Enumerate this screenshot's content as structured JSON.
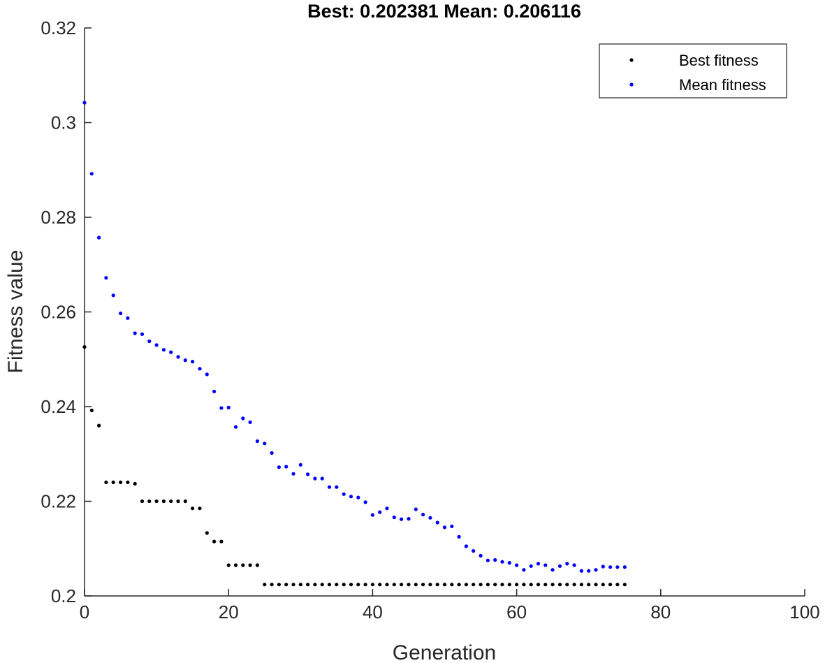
{
  "chart_data": {
    "type": "scatter",
    "title": "Best: 0.202381 Mean: 0.206116",
    "xlabel": "Generation",
    "ylabel": "Fitness value",
    "xlim": [
      0,
      100
    ],
    "ylim": [
      0.2,
      0.32
    ],
    "xticks": [
      "0",
      "20",
      "40",
      "60",
      "80",
      "100"
    ],
    "yticks": [
      "0.2",
      "0.22",
      "0.24",
      "0.26",
      "0.28",
      "0.3",
      "0.32"
    ],
    "grid": false,
    "legend_position": "top-right",
    "series": [
      {
        "name": "Best fitness",
        "color": "#000000",
        "x": [
          0,
          1,
          2,
          3,
          4,
          5,
          6,
          7,
          8,
          9,
          10,
          11,
          12,
          13,
          14,
          15,
          16,
          17,
          18,
          19,
          20,
          21,
          22,
          23,
          24,
          25,
          26,
          27,
          28,
          29,
          30,
          31,
          32,
          33,
          34,
          35,
          36,
          37,
          38,
          39,
          40,
          41,
          42,
          43,
          44,
          45,
          46,
          47,
          48,
          49,
          50,
          51,
          52,
          53,
          54,
          55,
          56,
          57,
          58,
          59,
          60,
          61,
          62,
          63,
          64,
          65,
          66,
          67,
          68,
          69,
          70,
          71,
          72,
          73,
          74,
          75
        ],
        "y": [
          0.2526,
          0.2392,
          0.236,
          0.224,
          0.224,
          0.224,
          0.224,
          0.2237,
          0.22,
          0.22,
          0.22,
          0.22,
          0.22,
          0.22,
          0.22,
          0.2185,
          0.2185,
          0.2133,
          0.2115,
          0.2115,
          0.2065,
          0.2065,
          0.2065,
          0.2065,
          0.2065,
          0.2024,
          0.2024,
          0.2024,
          0.2024,
          0.2024,
          0.2024,
          0.2024,
          0.2024,
          0.2024,
          0.2024,
          0.2024,
          0.2024,
          0.2024,
          0.2024,
          0.2024,
          0.2024,
          0.2024,
          0.2024,
          0.2024,
          0.2024,
          0.2024,
          0.2024,
          0.2024,
          0.2024,
          0.2024,
          0.2024,
          0.2024,
          0.2024,
          0.2024,
          0.2024,
          0.2024,
          0.2024,
          0.2024,
          0.2024,
          0.2024,
          0.2024,
          0.2024,
          0.2024,
          0.2024,
          0.2024,
          0.2024,
          0.2024,
          0.2024,
          0.2024,
          0.2024,
          0.2024,
          0.2024,
          0.2024,
          0.2024,
          0.2024,
          0.2024
        ]
      },
      {
        "name": "Mean fitness",
        "color": "#0000ff",
        "x": [
          0,
          1,
          2,
          3,
          4,
          5,
          6,
          7,
          8,
          9,
          10,
          11,
          12,
          13,
          14,
          15,
          16,
          17,
          18,
          19,
          20,
          21,
          22,
          23,
          24,
          25,
          26,
          27,
          28,
          29,
          30,
          31,
          32,
          33,
          34,
          35,
          36,
          37,
          38,
          39,
          40,
          41,
          42,
          43,
          44,
          45,
          46,
          47,
          48,
          49,
          50,
          51,
          52,
          53,
          54,
          55,
          56,
          57,
          58,
          59,
          60,
          61,
          62,
          63,
          64,
          65,
          66,
          67,
          68,
          69,
          70,
          71,
          72,
          73,
          74,
          75
        ],
        "y": [
          0.3042,
          0.2892,
          0.2757,
          0.2672,
          0.2635,
          0.2597,
          0.2587,
          0.2555,
          0.2553,
          0.2538,
          0.253,
          0.252,
          0.2515,
          0.2505,
          0.2498,
          0.2495,
          0.248,
          0.2468,
          0.2432,
          0.2397,
          0.2398,
          0.2357,
          0.2375,
          0.2367,
          0.2327,
          0.2322,
          0.2302,
          0.2272,
          0.2273,
          0.2258,
          0.2277,
          0.2257,
          0.2248,
          0.2248,
          0.223,
          0.223,
          0.2215,
          0.221,
          0.2208,
          0.2198,
          0.2171,
          0.2177,
          0.2185,
          0.2166,
          0.2162,
          0.2163,
          0.2183,
          0.2172,
          0.2165,
          0.2155,
          0.2145,
          0.2147,
          0.2125,
          0.2105,
          0.2095,
          0.2085,
          0.2075,
          0.2076,
          0.2072,
          0.207,
          0.2065,
          0.2055,
          0.2063,
          0.2068,
          0.2065,
          0.2055,
          0.2063,
          0.2068,
          0.2065,
          0.2053,
          0.2053,
          0.2055,
          0.2062,
          0.2061,
          0.2061,
          0.2061
        ]
      }
    ]
  }
}
